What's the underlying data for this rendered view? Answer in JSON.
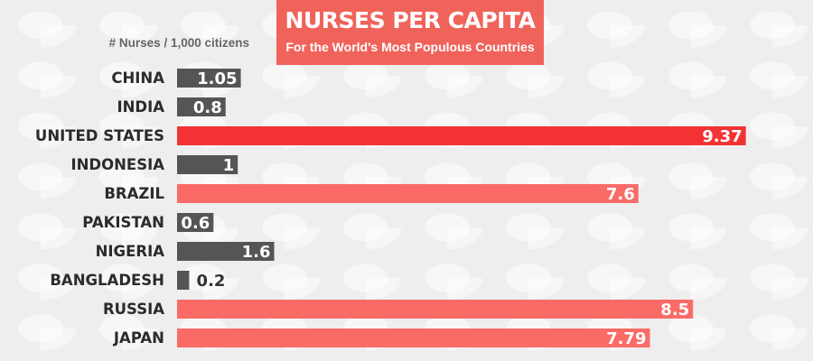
{
  "chart_data": {
    "type": "bar",
    "orientation": "horizontal",
    "title": "NURSES PER CAPITA",
    "subtitle": "For the World's Most Populous Countries",
    "unit_label": "# Nurses / 1,000 citizens",
    "categories": [
      "CHINA",
      "INDIA",
      "UNITED STATES",
      "INDONESIA",
      "BRAZIL",
      "PAKISTAN",
      "NIGERIA",
      "BANGLADESH",
      "RUSSIA",
      "JAPAN"
    ],
    "values": [
      1.05,
      0.8,
      9.37,
      1,
      7.6,
      0.6,
      1.6,
      0.2,
      8.5,
      7.79
    ],
    "value_labels": [
      "1.05",
      "0.8",
      "9.37",
      "1",
      "7.6",
      "0.6",
      "1.6",
      "0.2",
      "8.5",
      "7.79"
    ],
    "highlighted": [
      false,
      false,
      true,
      false,
      true,
      false,
      false,
      false,
      true,
      true
    ],
    "emphasis_index": 2,
    "grid": false,
    "legend": false
  },
  "colors": {
    "title_bg": "#f0635b",
    "bar_low": "#555555",
    "bar_high": "#fa6b68",
    "bar_emphasis": "#f33234",
    "value_on_bar": "#ffffff",
    "value_outside": "#333333",
    "category_text": "#2b2b2b",
    "unit_text": "#666666"
  }
}
